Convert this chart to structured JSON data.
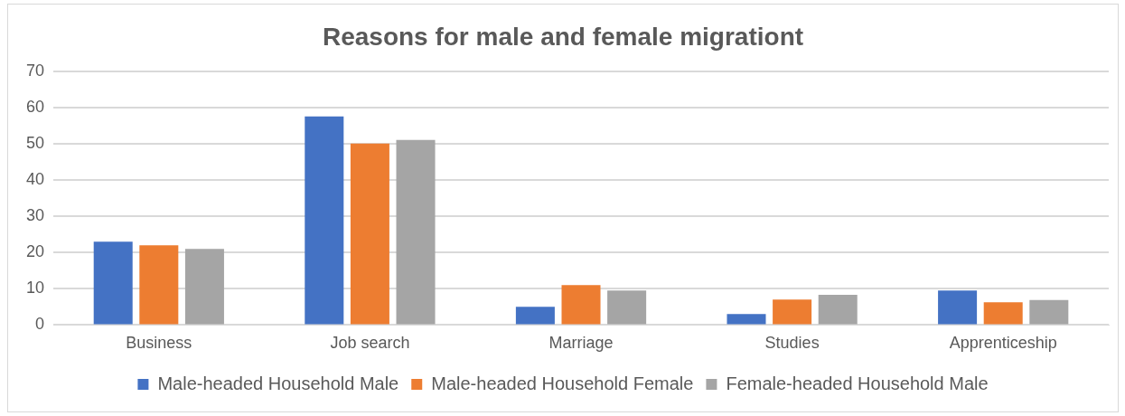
{
  "chart_data": {
    "type": "bar",
    "title": "Reasons for male and female migrationt",
    "categories": [
      "Business",
      "Job search",
      "Marriage",
      "Studies",
      "Apprenticeship"
    ],
    "series": [
      {
        "name": "Male-headed Household Male",
        "color": "#4472c4",
        "values": [
          23,
          57.5,
          5,
          3,
          9.5
        ]
      },
      {
        "name": "Male-headed Household Female",
        "color": "#ed7d31",
        "values": [
          22,
          50,
          11,
          7,
          6.3
        ]
      },
      {
        "name": "Female-headed Household Male",
        "color": "#a5a5a5",
        "values": [
          21,
          51,
          9.5,
          8.3,
          6.9
        ]
      }
    ],
    "ylim": [
      0,
      70
    ],
    "yticks": [
      0,
      10,
      20,
      30,
      40,
      50,
      60,
      70
    ],
    "grid": "y",
    "legend": "bottom"
  }
}
